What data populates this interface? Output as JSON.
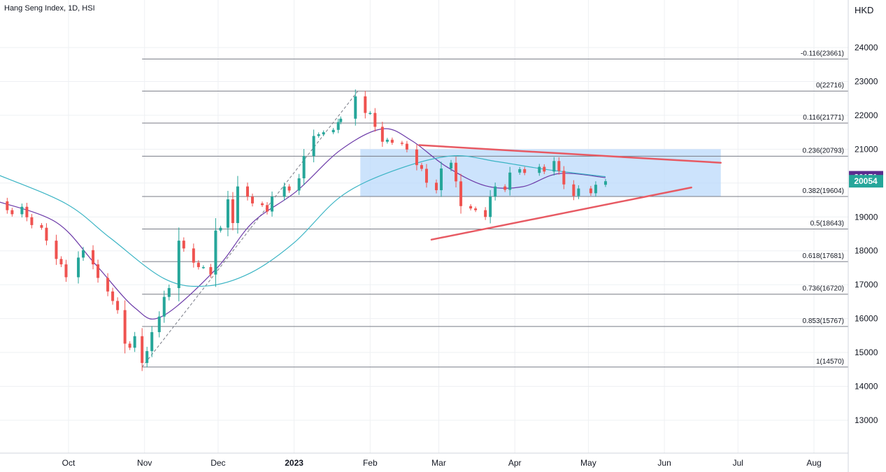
{
  "header": {
    "title": "Hang Seng Index, 1D, HSI",
    "currency": "HKD"
  },
  "chart_data": {
    "type": "candlestick",
    "title": "Hang Seng Index, 1D, HSI",
    "ylabel": "HKD",
    "ylim": [
      12000,
      25000
    ],
    "y_ticks": [
      13000,
      14000,
      15000,
      16000,
      17000,
      18000,
      19000,
      20000,
      21000,
      22000,
      23000,
      24000
    ],
    "x_ticks": [
      "Oct",
      "Nov",
      "Dec",
      "2023",
      "Feb",
      "Mar",
      "Apr",
      "May",
      "Jun",
      "Jul",
      "Aug"
    ],
    "fibonacci_levels": [
      {
        "label": "-0.116(23661)",
        "price": 23661
      },
      {
        "label": "0(22716)",
        "price": 22716
      },
      {
        "label": "0.116(21771)",
        "price": 21771
      },
      {
        "label": "0.236(20793)",
        "price": 20793
      },
      {
        "label": "0.382(19604)",
        "price": 19604
      },
      {
        "label": "0.5(18643)",
        "price": 18643
      },
      {
        "label": "0.618(17681)",
        "price": 17681
      },
      {
        "label": "0.736(16720)",
        "price": 16720
      },
      {
        "label": "0.853(15767)",
        "price": 15767
      },
      {
        "label": "1(14570)",
        "price": 14570
      }
    ],
    "price_badges": [
      {
        "value": "20171",
        "color": "#5b2c8f"
      },
      {
        "value": "20054",
        "color": "#26a69a"
      }
    ],
    "consolidation_zone": {
      "start": "2023-01-28",
      "end": "2023-06-24",
      "low": 19604,
      "high": 21000
    },
    "trendlines": [
      {
        "name": "resistance",
        "from": [
          "2023-02-21",
          21120
        ],
        "to": [
          "2023-06-24",
          20600
        ]
      },
      {
        "name": "support",
        "from": [
          "2023-02-26",
          18330
        ],
        "to": [
          "2023-06-12",
          19870
        ]
      }
    ],
    "close_series": [
      [
        "2022-09-02",
        19460
      ],
      [
        "2022-09-06",
        19200
      ],
      [
        "2022-09-08",
        19080
      ],
      [
        "2022-09-12",
        19300
      ],
      [
        "2022-09-14",
        18990
      ],
      [
        "2022-09-16",
        18760
      ],
      [
        "2022-09-20",
        18680
      ],
      [
        "2022-09-22",
        18300
      ],
      [
        "2022-09-26",
        17760
      ],
      [
        "2022-09-28",
        17600
      ],
      [
        "2022-09-30",
        17220
      ],
      [
        "2022-10-05",
        17800
      ],
      [
        "2022-10-07",
        18020
      ],
      [
        "2022-10-11",
        17600
      ],
      [
        "2022-10-13",
        17200
      ],
      [
        "2022-10-17",
        16800
      ],
      [
        "2022-10-19",
        16520
      ],
      [
        "2022-10-21",
        16250
      ],
      [
        "2022-10-24",
        15260
      ],
      [
        "2022-10-26",
        15140
      ],
      [
        "2022-10-28",
        15480
      ],
      [
        "2022-10-31",
        14690
      ],
      [
        "2022-11-02",
        15040
      ],
      [
        "2022-11-04",
        15600
      ],
      [
        "2022-11-07",
        16060
      ],
      [
        "2022-11-09",
        16640
      ],
      [
        "2022-11-11",
        16900
      ],
      [
        "2022-11-15",
        18300
      ],
      [
        "2022-11-17",
        18070
      ],
      [
        "2022-11-21",
        17650
      ],
      [
        "2022-11-23",
        17520
      ],
      [
        "2022-11-25",
        17520
      ],
      [
        "2022-11-28",
        17300
      ],
      [
        "2022-11-30",
        18600
      ],
      [
        "2022-12-02",
        18680
      ],
      [
        "2022-12-05",
        19520
      ],
      [
        "2022-12-07",
        18820
      ],
      [
        "2022-12-09",
        19900
      ],
      [
        "2022-12-13",
        19600
      ],
      [
        "2022-12-15",
        19400
      ],
      [
        "2022-12-19",
        19350
      ],
      [
        "2022-12-21",
        19160
      ],
      [
        "2022-12-23",
        19600
      ],
      [
        "2022-12-28",
        19900
      ],
      [
        "2022-12-30",
        19780
      ],
      [
        "2023-01-03",
        20140
      ],
      [
        "2023-01-05",
        20800
      ],
      [
        "2023-01-09",
        21390
      ],
      [
        "2023-01-11",
        21440
      ],
      [
        "2023-01-13",
        21500
      ],
      [
        "2023-01-17",
        21570
      ],
      [
        "2023-01-19",
        21800
      ],
      [
        "2023-01-20",
        21900
      ],
      [
        "2023-01-26",
        22560
      ],
      [
        "2023-01-30",
        22070
      ],
      [
        "2023-02-01",
        22070
      ],
      [
        "2023-02-03",
        21660
      ],
      [
        "2023-02-06",
        21220
      ],
      [
        "2023-02-08",
        21280
      ],
      [
        "2023-02-10",
        21190
      ],
      [
        "2023-02-14",
        21160
      ],
      [
        "2023-02-16",
        20990
      ],
      [
        "2023-02-20",
        20530
      ],
      [
        "2023-02-22",
        20420
      ],
      [
        "2023-02-24",
        20010
      ],
      [
        "2023-02-28",
        19790
      ],
      [
        "2023-03-02",
        20430
      ],
      [
        "2023-03-06",
        20600
      ],
      [
        "2023-03-08",
        20050
      ],
      [
        "2023-03-10",
        19320
      ],
      [
        "2023-03-14",
        19250
      ],
      [
        "2023-03-16",
        19200
      ],
      [
        "2023-03-20",
        19000
      ],
      [
        "2023-03-22",
        19600
      ],
      [
        "2023-03-24",
        19900
      ],
      [
        "2023-03-28",
        19800
      ],
      [
        "2023-03-30",
        20310
      ],
      [
        "2023-04-03",
        20410
      ],
      [
        "2023-04-05",
        20300
      ],
      [
        "2023-04-11",
        20480
      ],
      [
        "2023-04-13",
        20340
      ],
      [
        "2023-04-17",
        20650
      ],
      [
        "2023-04-19",
        20360
      ],
      [
        "2023-04-21",
        19960
      ],
      [
        "2023-04-25",
        19620
      ],
      [
        "2023-04-27",
        19840
      ],
      [
        "2023-05-02",
        19700
      ],
      [
        "2023-05-04",
        19950
      ],
      [
        "2023-05-08",
        20054
      ]
    ],
    "moving_averages": [
      {
        "color": "#6c3aa8",
        "points": [
          [
            "2022-09-02",
            19460
          ],
          [
            "2022-09-26",
            18840
          ],
          [
            "2022-10-12",
            17600
          ],
          [
            "2022-10-28",
            16320
          ],
          [
            "2022-11-08",
            16060
          ],
          [
            "2022-11-30",
            17450
          ],
          [
            "2022-12-15",
            18830
          ],
          [
            "2023-01-02",
            19760
          ],
          [
            "2023-01-20",
            20980
          ],
          [
            "2023-02-06",
            21600
          ],
          [
            "2023-02-18",
            21250
          ],
          [
            "2023-03-04",
            20490
          ],
          [
            "2023-03-20",
            19920
          ],
          [
            "2023-04-04",
            19890
          ],
          [
            "2023-04-19",
            20280
          ],
          [
            "2023-05-08",
            20160
          ]
        ]
      },
      {
        "color": "#3ab4c4",
        "points": [
          [
            "2022-09-02",
            20250
          ],
          [
            "2022-09-30",
            19390
          ],
          [
            "2022-10-18",
            18380
          ],
          [
            "2022-11-09",
            17180
          ],
          [
            "2022-11-26",
            16960
          ],
          [
            "2022-12-14",
            17340
          ],
          [
            "2023-01-01",
            18240
          ],
          [
            "2023-01-20",
            19600
          ],
          [
            "2023-02-10",
            20350
          ],
          [
            "2023-03-06",
            20800
          ],
          [
            "2023-03-25",
            20630
          ],
          [
            "2023-04-14",
            20400
          ],
          [
            "2023-05-08",
            20190
          ]
        ]
      }
    ]
  }
}
